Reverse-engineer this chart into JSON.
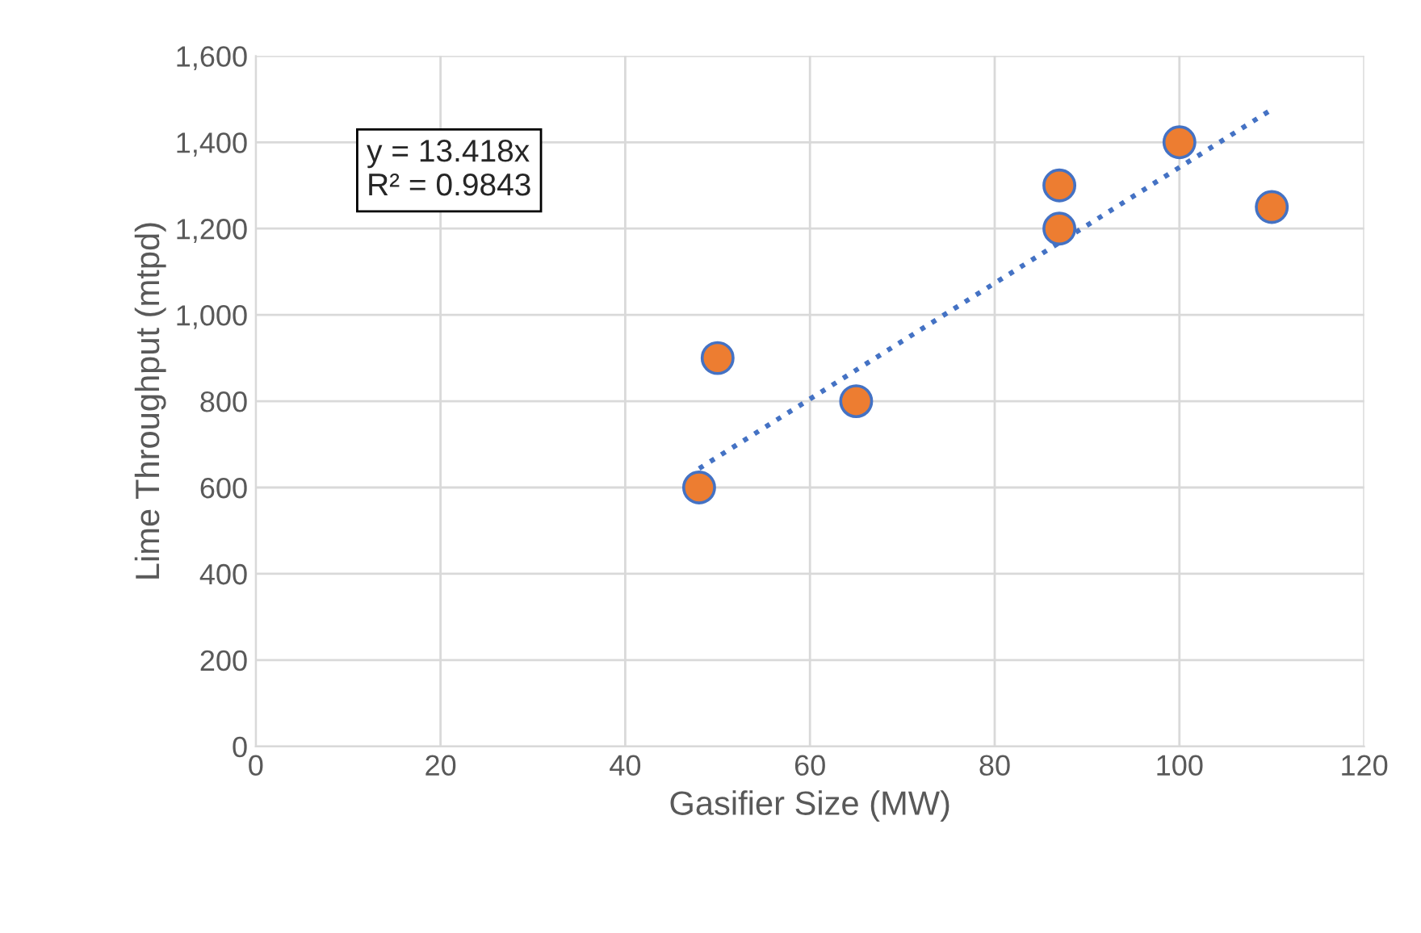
{
  "chart_data": {
    "type": "scatter",
    "xlabel": "Gasifier Size (MW)",
    "ylabel": "Lime Throughput (mtpd)",
    "xlim": [
      0,
      120
    ],
    "xticks": [
      0,
      20,
      40,
      60,
      80,
      100,
      120
    ],
    "ylim": [
      0,
      1600
    ],
    "yticks": [
      {
        "value": 0,
        "label": "0"
      },
      {
        "value": 200,
        "label": "200"
      },
      {
        "value": 400,
        "label": "400"
      },
      {
        "value": 600,
        "label": "600"
      },
      {
        "value": 800,
        "label": "800"
      },
      {
        "value": 1000,
        "label": "1,000"
      },
      {
        "value": 1200,
        "label": "1,200"
      },
      {
        "value": 1400,
        "label": "1,400"
      },
      {
        "value": 1600,
        "label": "1,600"
      }
    ],
    "grid": true,
    "marker": "circle",
    "annotations": [
      "y = 13.418x\nR² = 0.9843"
    ],
    "series": [
      {
        "color": "#ed7d31",
        "x": [
          48,
          50,
          65,
          87,
          87,
          100,
          110
        ],
        "values": [
          600,
          900,
          800,
          1300,
          1200,
          1400,
          1250
        ]
      },
      {
        "type": "line",
        "color": "#4472c4",
        "line_style": "dotted",
        "marker": "none",
        "x": [
          48,
          110
        ],
        "values": [
          644,
          1476
        ]
      }
    ]
  }
}
